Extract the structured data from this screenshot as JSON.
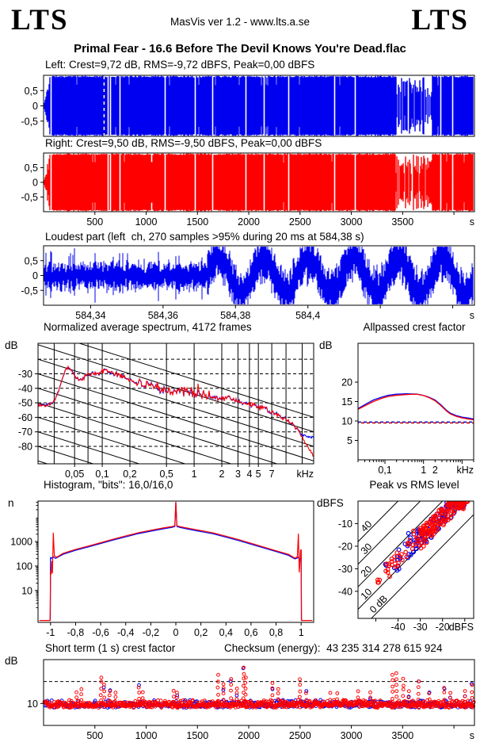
{
  "header": {
    "logo_left": "LTS",
    "logo_right": "LTS",
    "center": "MasVis ver 1.2 - www.lts.a.se"
  },
  "title": "Primal Fear - 16.6 Before The Devil Knows You're Dead.flac",
  "checksum": {
    "label": "Checksum (energy):",
    "value": "43 235 314 278 615 924"
  },
  "colors": {
    "left_channel": "#0000F0",
    "right_channel": "#FF0000",
    "marker": "#FFFFA8",
    "axis": "#000000",
    "dashed_blue": "#0000D0",
    "dashed_red": "#C80000"
  },
  "chart_data": [
    {
      "id": "wave_left",
      "type": "waveform",
      "title": "Left: Crest=9,72 dB, RMS=-9,72 dBFS, Peak=0,00 dBFS",
      "color": "#0000F0",
      "seed": 11,
      "xlim": [
        0,
        4200
      ],
      "ylim": [
        -1,
        1
      ],
      "yticks": [
        {
          "v": 0.5,
          "label": "0,5"
        },
        {
          "v": 0,
          "label": "0"
        },
        {
          "v": -0.5,
          "label": "-0,5"
        }
      ],
      "marker_s": 590,
      "fade_frac": 0.014,
      "gaps": [
        0.017,
        0.148,
        0.154,
        0.176,
        0.281,
        0.351,
        0.392,
        0.469,
        0.511,
        0.568,
        0.675,
        0.722,
        0.921,
        0.949
      ],
      "quiet": [
        [
          0.818,
          0.901
        ]
      ]
    },
    {
      "id": "wave_right",
      "type": "waveform",
      "title": "Right: Crest=9,50 dB, RMS=-9,50 dBFS, Peak=0,00 dBFS",
      "color": "#FF0000",
      "seed": 29,
      "xlim": [
        0,
        4200
      ],
      "ylim": [
        -1,
        1
      ],
      "yticks": [
        {
          "v": 0.5,
          "label": "0,5"
        },
        {
          "v": 0,
          "label": "0"
        },
        {
          "v": -0.5,
          "label": "-0,5"
        }
      ],
      "fade_frac": 0.014,
      "gaps": [
        0.017,
        0.148,
        0.154,
        0.176,
        0.281,
        0.351,
        0.392,
        0.469,
        0.511,
        0.568,
        0.675,
        0.722,
        0.921,
        0.949
      ],
      "quiet": [
        [
          0.818,
          0.901
        ]
      ],
      "xticks": [
        {
          "v": 500,
          "label": "500"
        },
        {
          "v": 1000,
          "label": "1000"
        },
        {
          "v": 1500,
          "label": "1500"
        },
        {
          "v": 2000,
          "label": "2000"
        },
        {
          "v": 2500,
          "label": "2500"
        },
        {
          "v": 3000,
          "label": "3000"
        },
        {
          "v": 3500,
          "label": "3500"
        },
        {
          "v": 4000,
          "label": ""
        }
      ],
      "xunit": "s"
    },
    {
      "id": "loudest",
      "type": "noiseband",
      "title": "Loudest part (left  ch, 270 samples >95% during 20 ms at 584,38 s)",
      "color": "#0000F0",
      "seed": 47,
      "xlim": [
        584.327,
        584.446
      ],
      "ylim": [
        -1,
        1
      ],
      "yticks": [
        {
          "v": 0.5,
          "label": "0,5"
        },
        {
          "v": 0,
          "label": "0"
        },
        {
          "v": -0.5,
          "label": "-0,5"
        }
      ],
      "xticks": [
        {
          "v": 584.34,
          "label": "584,34"
        },
        {
          "v": 584.36,
          "label": "584,36"
        },
        {
          "v": 584.38,
          "label": "584,38"
        },
        {
          "v": 584.4,
          "label": "584,4"
        },
        {
          "v": 584.42,
          "label": ""
        },
        {
          "v": 584.44,
          "label": ""
        }
      ],
      "xunit": "s"
    },
    {
      "id": "spectrum",
      "type": "spectrum",
      "title": "Normalized average spectrum, 4172 frames",
      "ylabel": "dB",
      "xunit": "kHz",
      "seed": 101,
      "xlim": [
        0.02,
        20
      ],
      "ylim": [
        -9,
        -92
      ],
      "yticks": [
        -30,
        -40,
        -50,
        -60,
        -70,
        -80
      ],
      "dashed": [
        -20,
        -30,
        -40,
        -50,
        -60,
        -70,
        -80
      ],
      "vgrid": [
        0.03,
        0.05,
        0.07,
        0.1,
        0.2,
        0.5,
        1,
        2,
        3,
        4,
        5,
        7,
        10,
        15
      ],
      "diagonal_slope_db_per_decade": -20,
      "diagonal_spacing_db": 10,
      "xticks": [
        {
          "v": 0.05,
          "label": "0,05"
        },
        {
          "v": 0.1,
          "label": "0,1"
        },
        {
          "v": 0.2,
          "label": "0,2"
        },
        {
          "v": 0.5,
          "label": "0,5"
        },
        {
          "v": 1,
          "label": "1"
        },
        {
          "v": 2,
          "label": "2"
        },
        {
          "v": 3,
          "label": "3"
        },
        {
          "v": 4,
          "label": "4"
        },
        {
          "v": 5,
          "label": "5"
        },
        {
          "v": 7,
          "label": "7"
        }
      ],
      "anchors": [
        [
          0.02,
          -52
        ],
        [
          0.025,
          -51.5
        ],
        [
          0.03,
          -49
        ],
        [
          0.035,
          -38
        ],
        [
          0.04,
          -26
        ],
        [
          0.043,
          -25.5
        ],
        [
          0.047,
          -28
        ],
        [
          0.052,
          -33
        ],
        [
          0.058,
          -34.5
        ],
        [
          0.065,
          -32
        ],
        [
          0.07,
          -30.5
        ],
        [
          0.08,
          -29
        ],
        [
          0.09,
          -30.5
        ],
        [
          0.1,
          -28.5
        ],
        [
          0.11,
          -27.5
        ],
        [
          0.13,
          -30
        ],
        [
          0.15,
          -30.5
        ],
        [
          0.18,
          -33
        ],
        [
          0.22,
          -35.5
        ],
        [
          0.3,
          -38
        ],
        [
          0.4,
          -40
        ],
        [
          0.5,
          -41
        ],
        [
          0.65,
          -42
        ],
        [
          0.8,
          -42.5
        ],
        [
          1,
          -43.5
        ],
        [
          1.3,
          -44.5
        ],
        [
          1.7,
          -46
        ],
        [
          2,
          -47
        ],
        [
          2.4,
          -46.5
        ],
        [
          2.8,
          -48
        ],
        [
          3.5,
          -50
        ],
        [
          4.5,
          -52
        ],
        [
          5.5,
          -53.5
        ],
        [
          7,
          -56.5
        ],
        [
          8.5,
          -59
        ],
        [
          10,
          -61.5
        ],
        [
          12,
          -65
        ],
        [
          13,
          -67.5
        ]
      ],
      "blue_tail": [
        [
          13,
          -67.5
        ],
        [
          14,
          -70
        ],
        [
          15,
          -72
        ],
        [
          16,
          -72.5
        ],
        [
          18,
          -73.5
        ],
        [
          20,
          -74
        ]
      ],
      "red_tail": [
        [
          13,
          -67.5
        ],
        [
          14,
          -70
        ],
        [
          15,
          -74
        ],
        [
          16,
          -77
        ],
        [
          18,
          -82
        ],
        [
          20,
          -87
        ]
      ]
    },
    {
      "id": "allpass",
      "type": "lines",
      "title": "Allpassed crest factor",
      "ylabel": "dB",
      "xunit": "kHz",
      "xlim": [
        0.02,
        20
      ],
      "ylim": [
        0,
        30
      ],
      "yticks": [
        5,
        10,
        15,
        20
      ],
      "xticks": [
        {
          "v": 0.1,
          "label": "0,1"
        },
        {
          "v": 1,
          "label": "1"
        },
        {
          "v": 2,
          "label": "2"
        }
      ],
      "blue": [
        [
          0.02,
          13.2
        ],
        [
          0.03,
          14.2
        ],
        [
          0.05,
          15.4
        ],
        [
          0.08,
          16.1
        ],
        [
          0.12,
          16.6
        ],
        [
          0.2,
          16.9
        ],
        [
          0.35,
          17
        ],
        [
          0.5,
          16.95
        ],
        [
          0.7,
          16.9
        ],
        [
          1,
          16.6
        ],
        [
          1.4,
          16.1
        ],
        [
          2,
          15.4
        ],
        [
          2.8,
          14.2
        ],
        [
          4,
          12.7
        ],
        [
          5,
          12
        ],
        [
          7,
          11.4
        ],
        [
          10,
          11
        ],
        [
          14,
          10.8
        ],
        [
          20,
          10.5
        ]
      ],
      "red": [
        [
          0.02,
          13
        ],
        [
          0.03,
          13.9
        ],
        [
          0.05,
          15
        ],
        [
          0.08,
          15.8
        ],
        [
          0.12,
          16.3
        ],
        [
          0.2,
          16.6
        ],
        [
          0.35,
          16.8
        ],
        [
          0.5,
          16.85
        ],
        [
          0.7,
          16.85
        ],
        [
          1,
          16.55
        ],
        [
          1.4,
          16
        ],
        [
          2,
          15.2
        ],
        [
          2.8,
          14
        ],
        [
          4,
          12.5
        ],
        [
          5,
          11.8
        ],
        [
          7,
          11.2
        ],
        [
          10,
          10.8
        ],
        [
          14,
          10.5
        ],
        [
          20,
          10.3
        ]
      ],
      "dashed_blue": 9.72,
      "dashed_red": 9.5
    },
    {
      "id": "histogram",
      "type": "histogram",
      "title": "Histogram, \"bits\": 16,0/16,0",
      "ylabel": "n",
      "xlim": [
        -1.1,
        1.1
      ],
      "ylog_lim": [
        0.5,
        45000
      ],
      "yticks": [
        10,
        100,
        1000
      ],
      "xticks": [
        {
          "v": -1,
          "label": "-1"
        },
        {
          "v": -0.8,
          "label": "-0,8"
        },
        {
          "v": -0.6,
          "label": "-0,6"
        },
        {
          "v": -0.4,
          "label": "-0,4"
        },
        {
          "v": -0.2,
          "label": "-0,2"
        },
        {
          "v": 0,
          "label": "0"
        },
        {
          "v": 0.2,
          "label": "0,2"
        },
        {
          "v": 0.4,
          "label": "0,4"
        },
        {
          "v": 0.6,
          "label": "0,6"
        },
        {
          "v": 0.8,
          "label": "0,8"
        },
        {
          "v": 1,
          "label": "1"
        }
      ],
      "red": [
        [
          -1.09,
          0.6
        ],
        [
          -1.004,
          0.6
        ],
        [
          -1.0,
          60
        ],
        [
          -0.995,
          45
        ],
        [
          -0.99,
          160
        ],
        [
          -0.985,
          50
        ],
        [
          -0.978,
          2300
        ],
        [
          -0.97,
          260
        ],
        [
          -0.95,
          230
        ],
        [
          -0.9,
          330
        ],
        [
          -0.8,
          480
        ],
        [
          -0.7,
          650
        ],
        [
          -0.6,
          900
        ],
        [
          -0.5,
          1250
        ],
        [
          -0.4,
          1700
        ],
        [
          -0.3,
          2300
        ],
        [
          -0.2,
          2900
        ],
        [
          -0.1,
          3600
        ],
        [
          -0.03,
          4100
        ],
        [
          -0.008,
          4400
        ],
        [
          0,
          42000
        ],
        [
          0.008,
          4400
        ],
        [
          0.03,
          4100
        ],
        [
          0.1,
          3500
        ],
        [
          0.2,
          2800
        ],
        [
          0.3,
          2250
        ],
        [
          0.4,
          1650
        ],
        [
          0.5,
          1200
        ],
        [
          0.6,
          850
        ],
        [
          0.7,
          600
        ],
        [
          0.8,
          420
        ],
        [
          0.9,
          300
        ],
        [
          0.95,
          210
        ],
        [
          0.97,
          240
        ],
        [
          0.978,
          2100
        ],
        [
          0.985,
          55
        ],
        [
          0.99,
          130
        ],
        [
          0.995,
          420
        ],
        [
          1.0,
          480
        ],
        [
          1.003,
          0.6
        ],
        [
          1.09,
          0.6
        ]
      ],
      "blue": [
        [
          -1.002,
          0.6
        ],
        [
          -1.0,
          230
        ],
        [
          -0.995,
          200
        ],
        [
          -0.98,
          240
        ],
        [
          -0.96,
          205
        ],
        [
          -0.9,
          300
        ],
        [
          -0.8,
          440
        ],
        [
          -0.7,
          600
        ],
        [
          -0.6,
          830
        ],
        [
          -0.5,
          1150
        ],
        [
          -0.4,
          1550
        ],
        [
          -0.3,
          2100
        ],
        [
          -0.2,
          2650
        ],
        [
          -0.1,
          3300
        ],
        [
          -0.03,
          3800
        ],
        [
          -0.008,
          4100
        ],
        [
          0,
          40000
        ],
        [
          0.008,
          4100
        ],
        [
          0.03,
          3800
        ],
        [
          0.1,
          3200
        ],
        [
          0.2,
          2550
        ],
        [
          0.3,
          2050
        ],
        [
          0.4,
          1500
        ],
        [
          0.5,
          1100
        ],
        [
          0.6,
          780
        ],
        [
          0.7,
          550
        ],
        [
          0.8,
          390
        ],
        [
          0.9,
          270
        ],
        [
          0.95,
          195
        ],
        [
          0.97,
          210
        ],
        [
          0.98,
          230
        ],
        [
          0.99,
          170
        ],
        [
          1.0,
          430
        ],
        [
          1.002,
          0.6
        ]
      ]
    },
    {
      "id": "peak_vs_rms",
      "type": "scatter_diag",
      "title": "Peak vs RMS level",
      "ylabel": "dBFS",
      "xunit": "dBFS",
      "seed": 77,
      "xlim": [
        -58,
        -6
      ],
      "ylim": [
        -52,
        0
      ],
      "xticks": [
        {
          "v": -50,
          "label": ""
        },
        {
          "v": -40,
          "label": "-40"
        },
        {
          "v": -30,
          "label": "-30"
        },
        {
          "v": -20,
          "label": "-20"
        },
        {
          "v": -10,
          "label": ""
        }
      ],
      "yticks": [
        -10,
        -20,
        -30,
        -40
      ],
      "diagonals": [
        {
          "k": 0,
          "label": "0 dB"
        },
        {
          "k": 10,
          "label": "10"
        },
        {
          "k": 20,
          "label": "20"
        },
        {
          "k": 30,
          "label": "30"
        },
        {
          "k": 40,
          "label": "40"
        }
      ],
      "n_blue": 110,
      "n_red": 190
    },
    {
      "id": "short_crest",
      "type": "time_scatter",
      "title": "Short term (1 s) crest factor",
      "ylabel": "dB",
      "xunit": "s",
      "seed": 53,
      "xlim": [
        0,
        4200
      ],
      "ylim": [
        0,
        30
      ],
      "yticks": [
        {
          "v": 10,
          "label": "10"
        }
      ],
      "dashed": 20,
      "xticks": [
        {
          "v": 500,
          "label": "500"
        },
        {
          "v": 1000,
          "label": "1000"
        },
        {
          "v": 1500,
          "label": "1500"
        },
        {
          "v": 2000,
          "label": "2000"
        },
        {
          "v": 2500,
          "label": "2500"
        },
        {
          "v": 3000,
          "label": "3000"
        },
        {
          "v": 3500,
          "label": "3500"
        },
        {
          "v": 4000,
          "label": ""
        }
      ],
      "spikes": [
        [
          320,
          15
        ],
        [
          370,
          16.5
        ],
        [
          560,
          22
        ],
        [
          590,
          18.5
        ],
        [
          645,
          16
        ],
        [
          700,
          15
        ],
        [
          930,
          17.5
        ],
        [
          965,
          15
        ],
        [
          1270,
          16
        ],
        [
          1300,
          15
        ],
        [
          1700,
          23
        ],
        [
          1755,
          19
        ],
        [
          1825,
          21
        ],
        [
          1885,
          17
        ],
        [
          1950,
          26
        ],
        [
          1970,
          22
        ],
        [
          2230,
          19.5
        ],
        [
          2285,
          17
        ],
        [
          2500,
          21
        ],
        [
          2560,
          15
        ],
        [
          2795,
          14.5
        ],
        [
          2860,
          15
        ],
        [
          3065,
          15.5
        ],
        [
          3185,
          15
        ],
        [
          3400,
          23
        ],
        [
          3440,
          24
        ],
        [
          3505,
          21
        ],
        [
          3560,
          16
        ],
        [
          3655,
          20
        ],
        [
          3760,
          15
        ],
        [
          3905,
          17
        ],
        [
          3965,
          15
        ],
        [
          4105,
          16
        ],
        [
          4175,
          18.5
        ]
      ]
    }
  ]
}
